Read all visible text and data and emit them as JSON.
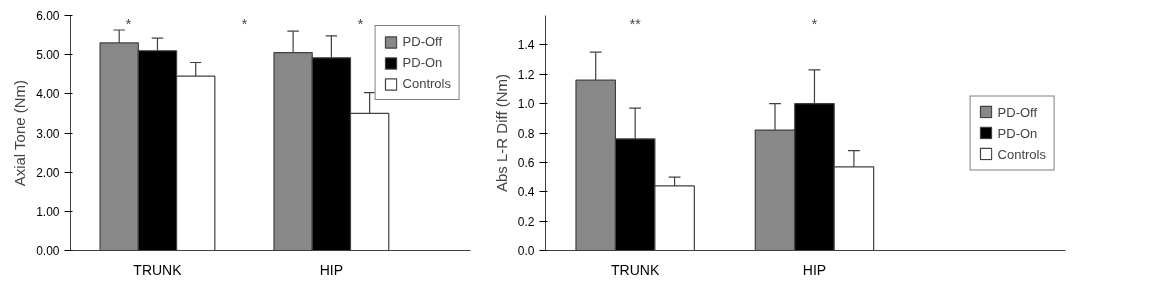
{
  "chart_data": [
    {
      "type": "bar",
      "ylabel": "Axial Tone (Nm)",
      "categories": [
        "TRUNK",
        "HIP"
      ],
      "series": [
        {
          "name": "PD-Off",
          "color": "#888888",
          "values": [
            5.3,
            5.05
          ],
          "errors": [
            [
              5.3,
              5.63
            ],
            [
              5.05,
              5.6
            ]
          ]
        },
        {
          "name": "PD-On",
          "color": "#000000",
          "values": [
            5.1,
            4.92
          ],
          "errors": [
            [
              5.1,
              5.42
            ],
            [
              4.92,
              5.48
            ]
          ]
        },
        {
          "name": "Controls",
          "color": "#ffffff",
          "values": [
            4.45,
            3.5
          ],
          "errors": [
            [
              4.45,
              4.8
            ],
            [
              3.5,
              4.03
            ]
          ]
        }
      ],
      "ylim": [
        0,
        6
      ],
      "yticks": [
        {
          "value": 0,
          "label": "0.00"
        },
        {
          "value": 1,
          "label": "1.00"
        },
        {
          "value": 2,
          "label": "2.00"
        },
        {
          "value": 3,
          "label": "3.00"
        },
        {
          "value": 4,
          "label": "4.00"
        },
        {
          "value": 5,
          "label": "5.00"
        },
        {
          "value": 6,
          "label": "6.00"
        }
      ],
      "grid": false,
      "legend": "top right",
      "annotations": [
        "*",
        "*",
        "*"
      ]
    },
    {
      "type": "bar",
      "ylabel": "Abs L-R Diff (Nm)",
      "categories": [
        "TRUNK",
        "HIP"
      ],
      "series": [
        {
          "name": "PD-Off",
          "color": "#888888",
          "values": [
            1.16,
            0.82
          ],
          "errors": [
            [
              1.16,
              1.35
            ],
            [
              0.82,
              1.0
            ]
          ]
        },
        {
          "name": "PD-On",
          "color": "#000000",
          "values": [
            0.76,
            1.0
          ],
          "errors": [
            [
              0.76,
              0.97
            ],
            [
              1.0,
              1.23
            ]
          ]
        },
        {
          "name": "Controls",
          "color": "#ffffff",
          "values": [
            0.44,
            0.57
          ],
          "errors": [
            [
              0.44,
              0.5
            ],
            [
              0.57,
              0.68
            ]
          ]
        }
      ],
      "ylim": [
        0,
        1.6
      ],
      "yticks": [
        {
          "value": 0,
          "label": "0.0"
        },
        {
          "value": 0.2,
          "label": "0.2"
        },
        {
          "value": 0.4,
          "label": "0.4"
        },
        {
          "value": 0.6,
          "label": "0.6"
        },
        {
          "value": 0.8,
          "label": "0.8"
        },
        {
          "value": 1.0,
          "label": "1.0"
        },
        {
          "value": 1.2,
          "label": "1.2"
        },
        {
          "value": 1.4,
          "label": "1.4"
        }
      ],
      "grid": false,
      "legend": "right",
      "annotations": [
        "**",
        "*"
      ]
    }
  ]
}
